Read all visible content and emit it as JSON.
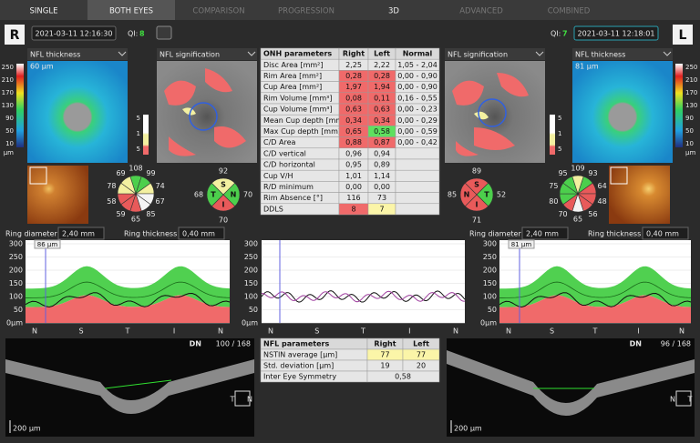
{
  "tabs": [
    "SINGLE",
    "BOTH EYES",
    "COMPARISON",
    "PROGRESSION",
    "3D",
    "ADVANCED",
    "COMBINED"
  ],
  "right": {
    "eye": "R",
    "date": "2021-03-11 12:16:30",
    "qi_label": "QI:",
    "qi": "8",
    "thickness_dropdown": "NFL thickness",
    "signification_dropdown": "NFL signification",
    "thickness_value": "60 µm",
    "ring_diameter_label": "Ring diameter",
    "ring_diameter": "2,40 mm",
    "ring_thickness_label": "Ring thickness",
    "ring_thickness": "0,40 mm",
    "graph_marker": "86 µm",
    "clock": {
      "values": [
        108,
        99,
        74,
        67,
        85,
        65,
        59,
        58,
        78,
        69
      ],
      "colors": [
        "#4ccf4c",
        "#4ccf4c",
        "#f3f0a0",
        "#f4f4f4",
        "#f4f4f4",
        "#e85a5a",
        "#e85a5a",
        "#e85a5a",
        "#f3f0a0",
        "#f3f0a0"
      ]
    },
    "quadrants": {
      "labels": [
        "S",
        "N",
        "I",
        "T"
      ],
      "values": [
        92,
        70,
        70,
        68
      ],
      "colors": [
        "#f3f0a0",
        "#4ccf4c",
        "#e85a5a",
        "#4ccf4c"
      ]
    },
    "oct": {
      "mode": "DN",
      "slice": "100 / 168",
      "scale": "200 µm",
      "left_dir": "T",
      "right_dir": "N"
    }
  },
  "left": {
    "eye": "L",
    "date": "2021-03-11 12:18:01",
    "qi_label": "QI:",
    "qi": "7",
    "thickness_dropdown": "NFL thickness",
    "signification_dropdown": "NFL signification",
    "thickness_value": "81 µm",
    "ring_diameter_label": "Ring diameter",
    "ring_diameter": "2,40 mm",
    "ring_thickness_label": "Ring thickness",
    "ring_thickness": "0,40 mm",
    "graph_marker": "81 µm",
    "clock": {
      "values": [
        93,
        64,
        48,
        56,
        65,
        70,
        80,
        75,
        95,
        109
      ],
      "colors": [
        "#4ccf4c",
        "#e85a5a",
        "#e85a5a",
        "#e85a5a",
        "#f4f4f4",
        "#e85a5a",
        "#4ccf4c",
        "#4ccf4c",
        "#4ccf4c",
        "#f3f0a0"
      ]
    },
    "quadrants": {
      "labels": [
        "S",
        "T",
        "I",
        "N"
      ],
      "values": [
        89,
        52,
        71,
        85
      ],
      "colors": [
        "#e85a5a",
        "#4ccf4c",
        "#e85a5a",
        "#e85a5a"
      ]
    },
    "oct": {
      "mode": "DN",
      "slice": "96 / 168",
      "scale": "200 µm",
      "left_dir": "N",
      "right_dir": "T"
    }
  },
  "colorbar": {
    "ticks": [
      "250",
      "210",
      "170",
      "130",
      "90",
      "50",
      "10"
    ],
    "unit": "µm"
  },
  "signification_scale": [
    "5",
    "1",
    "5"
  ],
  "graph": {
    "yticks": [
      "300",
      "250",
      "200",
      "150",
      "100",
      "50",
      "0µm"
    ],
    "xticks": [
      "N",
      "S",
      "T",
      "I",
      "N"
    ]
  },
  "onh_table": {
    "header": [
      "ONH parameters",
      "Right",
      "Left",
      "Normal"
    ],
    "rows": [
      [
        "Disc Area [mm²]",
        "2,25",
        "2,22",
        "1,05 - 2,04"
      ],
      [
        "Rim Area [mm²]",
        "0,28",
        "0,28",
        "0,00 - 0,90"
      ],
      [
        "Cup Area [mm²]",
        "1,97",
        "1,94",
        "0,00 - 0,90"
      ],
      [
        "Rim Volume [mm³]",
        "0,08",
        "0,11",
        "0,16 - 0,55"
      ],
      [
        "Cup Volume [mm³]",
        "0,63",
        "0,63",
        "0,00 - 0,23"
      ],
      [
        "Mean Cup depth [mm]",
        "0,34",
        "0,34",
        "0,00 - 0,29"
      ],
      [
        "Max Cup depth [mm]",
        "0,65",
        "0,58",
        "0,00 - 0,59"
      ],
      [
        "C/D Area",
        "0,88",
        "0,87",
        "0,00 - 0,42"
      ],
      [
        "C/D vertical",
        "0,96",
        "0,94",
        ""
      ],
      [
        "C/D horizontal",
        "0,95",
        "0,89",
        ""
      ],
      [
        "Cup V/H",
        "1,01",
        "1,14",
        ""
      ],
      [
        "R/D minimum",
        "0,00",
        "0,00",
        ""
      ],
      [
        "Rim Absence [°]",
        "116",
        "73",
        ""
      ],
      [
        "DDLS",
        "8",
        "7",
        ""
      ]
    ],
    "cell_colors": [
      [
        "#e6e6e6",
        "#e6e6e6"
      ],
      [
        "#f06a6a",
        "#f06a6a"
      ],
      [
        "#f06a6a",
        "#f06a6a"
      ],
      [
        "#f06a6a",
        "#f06a6a"
      ],
      [
        "#f06a6a",
        "#f06a6a"
      ],
      [
        "#f06a6a",
        "#f06a6a"
      ],
      [
        "#f06a6a",
        "#5fe05f"
      ],
      [
        "#f06a6a",
        "#f06a6a"
      ],
      [
        "#e6e6e6",
        "#e6e6e6"
      ],
      [
        "#e6e6e6",
        "#e6e6e6"
      ],
      [
        "#e6e6e6",
        "#e6e6e6"
      ],
      [
        "#e6e6e6",
        "#e6e6e6"
      ],
      [
        "#e6e6e6",
        "#e6e6e6"
      ],
      [
        "#f06a6a",
        "#fbf5a8"
      ]
    ]
  },
  "nfl_table": {
    "header": [
      "NFL parameters",
      "Right",
      "Left"
    ],
    "rows": [
      [
        "NSTIN average [µm]",
        "77",
        "77"
      ],
      [
        "Std. deviation [µm]",
        "19",
        "20"
      ]
    ],
    "symmetry_label": "Inter Eye Symmetry",
    "symmetry": "0,58"
  }
}
